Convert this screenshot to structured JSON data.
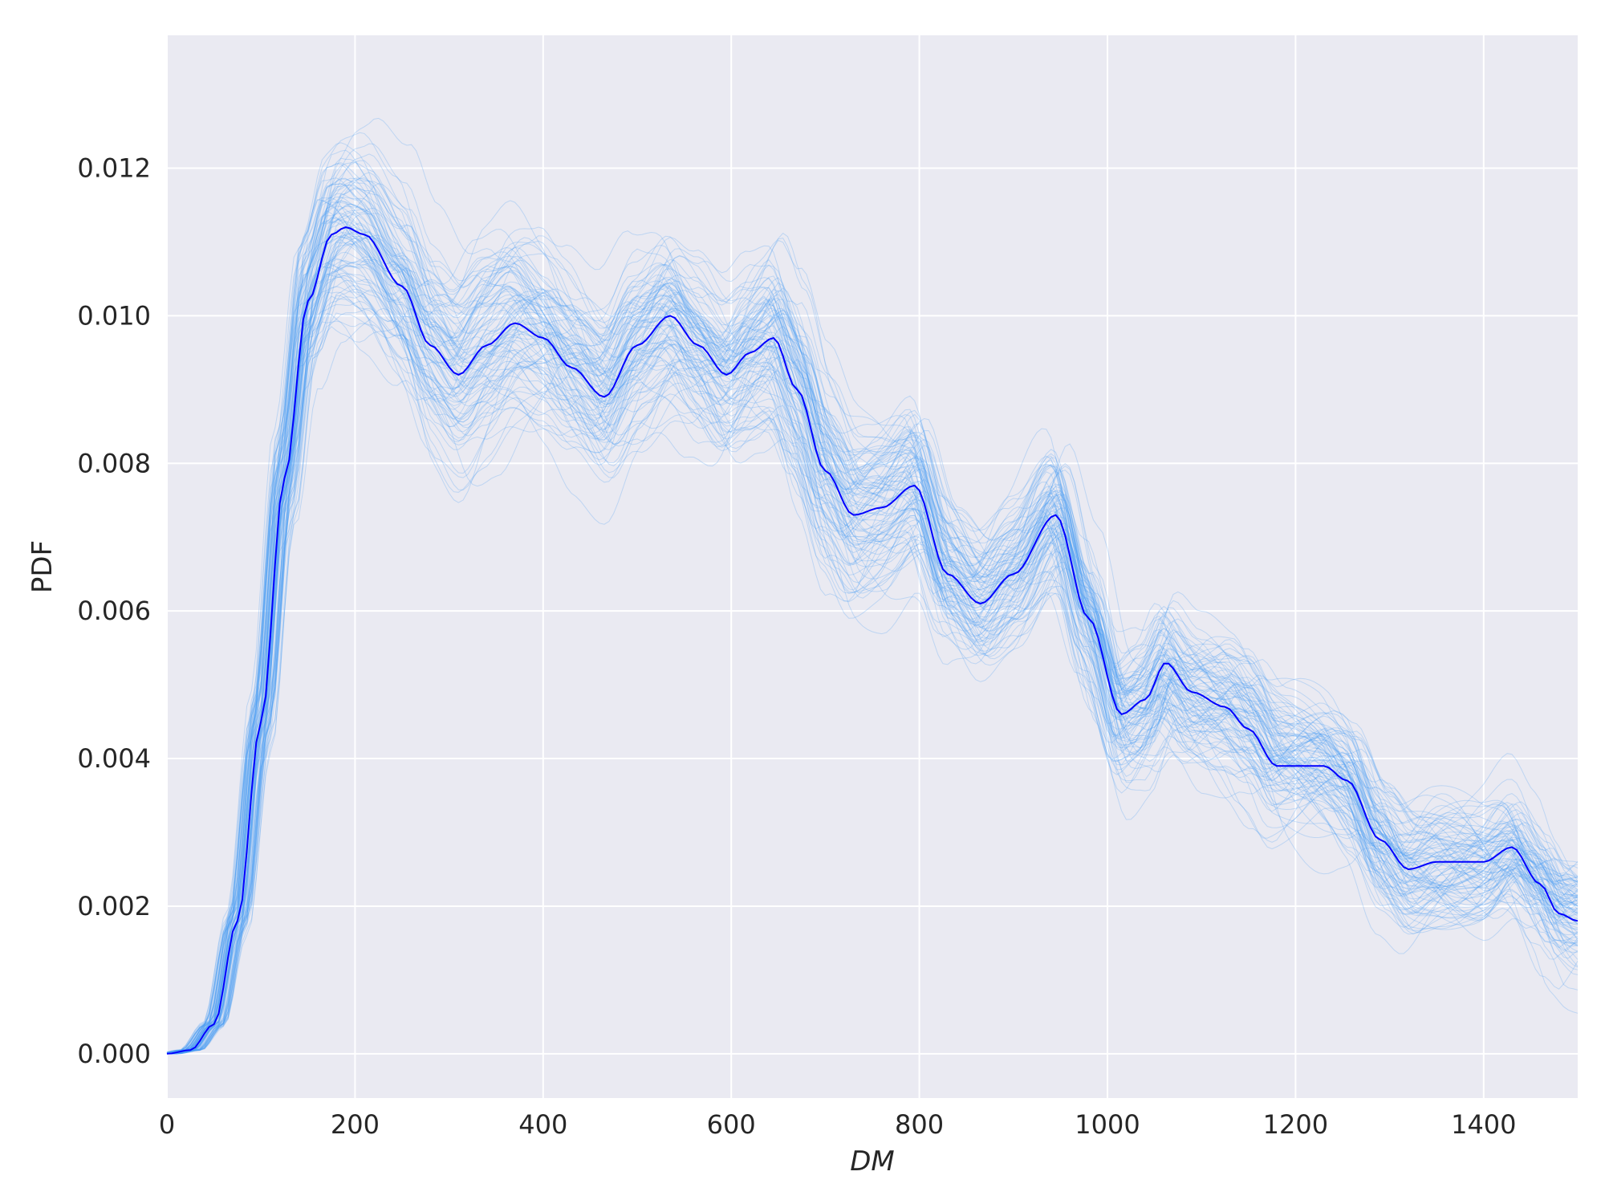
{
  "chart_data": {
    "type": "line",
    "title": "",
    "xlabel": "DM",
    "ylabel": "PDF",
    "xlim": [
      0,
      1500
    ],
    "ylim": [
      -0.0006,
      0.0138
    ],
    "xticks": [
      0,
      200,
      400,
      600,
      800,
      1000,
      1200,
      1400
    ],
    "xtick_labels": [
      "0",
      "200",
      "400",
      "600",
      "800",
      "1000",
      "1200",
      "1400"
    ],
    "yticks": [
      0.0,
      0.002,
      0.004,
      0.006,
      0.008,
      0.01,
      0.012
    ],
    "ytick_labels": [
      "0.000",
      "0.002",
      "0.004",
      "0.006",
      "0.008",
      "0.010",
      "0.012"
    ],
    "grid": true,
    "background_color": "#eaeaf2",
    "grid_color": "#ffffff",
    "series": [
      {
        "role": "main",
        "color": "#0000ff",
        "x": [
          0,
          25,
          50,
          75,
          100,
          125,
          150,
          175,
          190,
          210,
          250,
          280,
          310,
          340,
          370,
          400,
          430,
          465,
          500,
          535,
          565,
          595,
          620,
          645,
          670,
          700,
          730,
          760,
          795,
          830,
          865,
          900,
          945,
          980,
          1015,
          1040,
          1062,
          1090,
          1125,
          1150,
          1180,
          1200,
          1230,
          1255,
          1290,
          1320,
          1350,
          1375,
          1400,
          1430,
          1460,
          1480,
          1500
        ],
        "y": [
          0.0,
          5e-05,
          0.0004,
          0.0018,
          0.0045,
          0.0078,
          0.0102,
          0.0111,
          0.0112,
          0.0111,
          0.0104,
          0.0096,
          0.0092,
          0.0096,
          0.0099,
          0.0097,
          0.0093,
          0.0089,
          0.0096,
          0.01,
          0.0096,
          0.0092,
          0.0095,
          0.0097,
          0.009,
          0.0079,
          0.0073,
          0.0074,
          0.0077,
          0.0065,
          0.0061,
          0.0065,
          0.0073,
          0.0059,
          0.0046,
          0.0048,
          0.0053,
          0.0049,
          0.0047,
          0.0044,
          0.0039,
          0.0039,
          0.0039,
          0.0037,
          0.0029,
          0.0025,
          0.0026,
          0.0026,
          0.0026,
          0.0028,
          0.0023,
          0.0019,
          0.0018
        ]
      },
      {
        "role": "samples",
        "color": "#4a9ff5",
        "count": 100,
        "note_values": "ensemble of realizations scattered around main curve"
      }
    ]
  }
}
